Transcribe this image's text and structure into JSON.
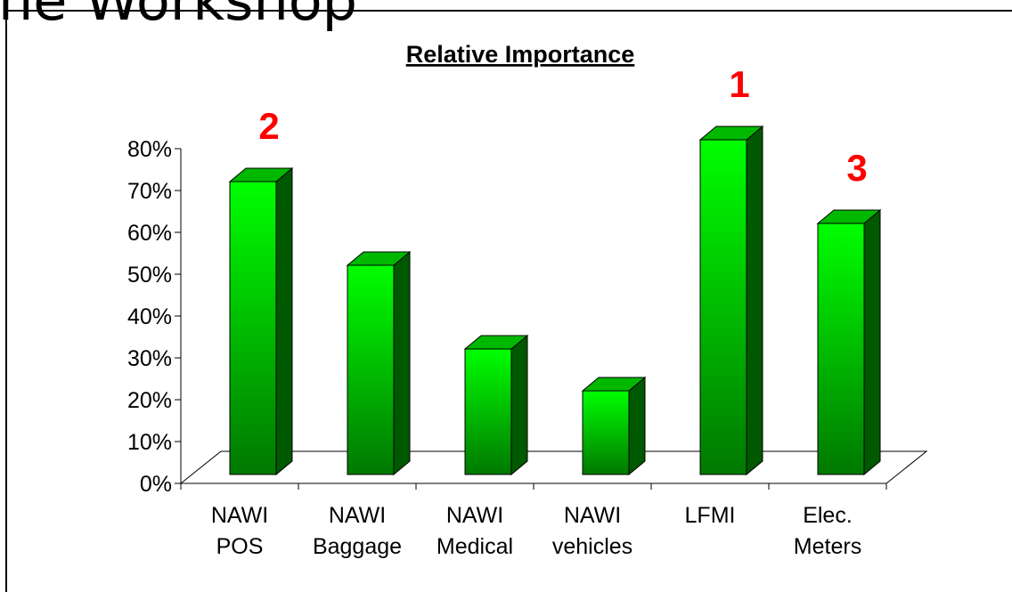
{
  "page_title": "he Workshop",
  "chart_data": {
    "type": "bar",
    "title": "Relative Importance",
    "categories": [
      [
        "NAWI",
        "POS"
      ],
      [
        "NAWI",
        "Baggage"
      ],
      [
        "NAWI",
        "Medical"
      ],
      [
        "NAWI",
        "vehicles"
      ],
      [
        "LFMI"
      ],
      [
        "Elec.",
        "Meters"
      ]
    ],
    "values": [
      70,
      50,
      30,
      20,
      80,
      60
    ],
    "color": "#00e000",
    "ylim": [
      0,
      80
    ],
    "yticks": [
      {
        "value": 0,
        "label": "0%"
      },
      {
        "value": 10,
        "label": "10%"
      },
      {
        "value": 20,
        "label": "20%"
      },
      {
        "value": 30,
        "label": "30%"
      },
      {
        "value": 40,
        "label": "40%"
      },
      {
        "value": 50,
        "label": "50%"
      },
      {
        "value": 60,
        "label": "60%"
      },
      {
        "value": 70,
        "label": "70%"
      },
      {
        "value": 80,
        "label": "80%"
      }
    ],
    "annotations": [
      "2",
      "1",
      "3"
    ]
  }
}
